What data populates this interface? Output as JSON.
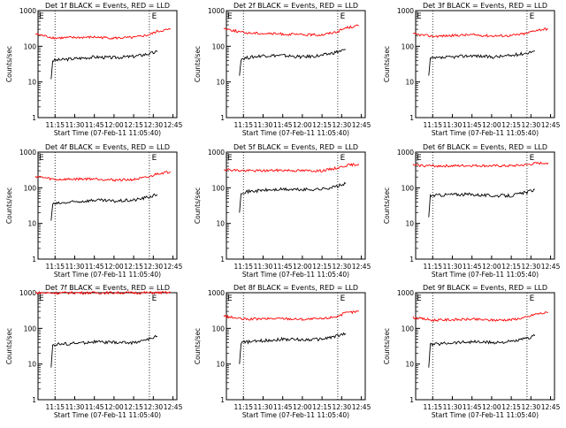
{
  "chart_data": [
    {
      "type": "line",
      "title": "Det 1f BLACK = Events, RED = LLD",
      "xlabel": "Start Time (07-Feb-11 11:05:40)",
      "ylabel": "Counts/sec",
      "yscale": "log",
      "ylim": [
        1,
        1000
      ],
      "x_tick_labels": [
        "11:15",
        "11:30",
        "11:45",
        "12:00",
        "12:15",
        "12:30",
        "12:45"
      ],
      "y_tick_labels": [
        "1",
        "10",
        "100",
        "1000"
      ],
      "markers": [
        "E",
        "E"
      ],
      "series": [
        {
          "color": "#000000",
          "values": [
            [
              11.2,
              12
            ],
            [
              11.22,
              40
            ],
            [
              11.5,
              45
            ],
            [
              11.75,
              50
            ],
            [
              12.0,
              48
            ],
            [
              12.25,
              52
            ],
            [
              12.45,
              62
            ],
            [
              12.55,
              70
            ]
          ]
        },
        {
          "color": "#ff0000",
          "values": [
            [
              11.0,
              220
            ],
            [
              11.25,
              170
            ],
            [
              11.5,
              175
            ],
            [
              11.75,
              180
            ],
            [
              12.0,
              170
            ],
            [
              12.25,
              175
            ],
            [
              12.45,
              210
            ],
            [
              12.55,
              260
            ],
            [
              12.72,
              300
            ]
          ]
        }
      ]
    },
    {
      "type": "line",
      "title": "Det 2f BLACK = Events, RED = LLD",
      "xlabel": "Start Time (07-Feb-11 11:05:40)",
      "ylabel": "Counts/sec",
      "yscale": "log",
      "ylim": [
        1,
        1000
      ],
      "x_tick_labels": [
        "11:15",
        "11:30",
        "11:45",
        "12:00",
        "12:15",
        "12:30",
        "12:45"
      ],
      "y_tick_labels": [
        "1",
        "10",
        "100",
        "1000"
      ],
      "markers": [
        "E",
        "E"
      ],
      "series": [
        {
          "color": "#000000",
          "values": [
            [
              11.2,
              15
            ],
            [
              11.22,
              45
            ],
            [
              11.5,
              55
            ],
            [
              11.75,
              55
            ],
            [
              12.0,
              50
            ],
            [
              12.25,
              55
            ],
            [
              12.45,
              70
            ],
            [
              12.55,
              80
            ]
          ]
        },
        {
          "color": "#ff0000",
          "values": [
            [
              11.0,
              320
            ],
            [
              11.25,
              240
            ],
            [
              11.5,
              230
            ],
            [
              11.75,
              220
            ],
            [
              12.0,
              210
            ],
            [
              12.25,
              210
            ],
            [
              12.45,
              260
            ],
            [
              12.55,
              330
            ],
            [
              12.72,
              380
            ]
          ]
        }
      ]
    },
    {
      "type": "line",
      "title": "Det 3f BLACK = Events, RED = LLD",
      "xlabel": "Start Time (07-Feb-11 11:05:40)",
      "ylabel": "Counts/sec",
      "yscale": "log",
      "ylim": [
        1,
        1000
      ],
      "x_tick_labels": [
        "11:15",
        "11:30",
        "11:45",
        "12:00",
        "12:15",
        "12:30",
        "12:45"
      ],
      "y_tick_labels": [
        "1",
        "10",
        "100",
        "1000"
      ],
      "markers": [
        "E",
        "E"
      ],
      "series": [
        {
          "color": "#000000",
          "values": [
            [
              11.2,
              15
            ],
            [
              11.22,
              45
            ],
            [
              11.5,
              50
            ],
            [
              11.75,
              55
            ],
            [
              12.0,
              50
            ],
            [
              12.25,
              55
            ],
            [
              12.45,
              65
            ],
            [
              12.55,
              75
            ]
          ]
        },
        {
          "color": "#ff0000",
          "values": [
            [
              11.0,
              220
            ],
            [
              11.25,
              190
            ],
            [
              11.5,
              200
            ],
            [
              11.75,
              210
            ],
            [
              12.0,
              195
            ],
            [
              12.25,
              200
            ],
            [
              12.45,
              230
            ],
            [
              12.55,
              280
            ],
            [
              12.72,
              310
            ]
          ]
        }
      ]
    },
    {
      "type": "line",
      "title": "Det 4f BLACK = Events, RED = LLD",
      "xlabel": "Start Time (07-Feb-11 11:05:40)",
      "ylabel": "Counts/sec",
      "yscale": "log",
      "ylim": [
        1,
        1000
      ],
      "x_tick_labels": [
        "11:15",
        "11:30",
        "11:45",
        "12:00",
        "12:15",
        "12:30",
        "12:45"
      ],
      "y_tick_labels": [
        "1",
        "10",
        "100",
        "1000"
      ],
      "markers": [
        "E",
        "E"
      ],
      "series": [
        {
          "color": "#000000",
          "values": [
            [
              11.2,
              12
            ],
            [
              11.22,
              35
            ],
            [
              11.5,
              40
            ],
            [
              11.75,
              45
            ],
            [
              12.0,
              42
            ],
            [
              12.25,
              45
            ],
            [
              12.45,
              55
            ],
            [
              12.55,
              65
            ]
          ]
        },
        {
          "color": "#ff0000",
          "values": [
            [
              11.0,
              210
            ],
            [
              11.25,
              170
            ],
            [
              11.5,
              175
            ],
            [
              11.75,
              180
            ],
            [
              12.0,
              165
            ],
            [
              12.25,
              170
            ],
            [
              12.45,
              200
            ],
            [
              12.55,
              250
            ],
            [
              12.72,
              280
            ]
          ]
        }
      ]
    },
    {
      "type": "line",
      "title": "Det 5f BLACK = Events, RED = LLD",
      "xlabel": "Start Time (07-Feb-11 11:05:40)",
      "ylabel": "Counts/sec",
      "yscale": "log",
      "ylim": [
        1,
        1000
      ],
      "x_tick_labels": [
        "11:15",
        "11:30",
        "11:45",
        "12:00",
        "12:15",
        "12:30",
        "12:45"
      ],
      "y_tick_labels": [
        "1",
        "10",
        "100",
        "1000"
      ],
      "markers": [
        "E",
        "E"
      ],
      "series": [
        {
          "color": "#000000",
          "values": [
            [
              11.2,
              20
            ],
            [
              11.22,
              75
            ],
            [
              11.5,
              85
            ],
            [
              11.75,
              90
            ],
            [
              12.0,
              88
            ],
            [
              12.25,
              92
            ],
            [
              12.45,
              110
            ],
            [
              12.55,
              130
            ]
          ]
        },
        {
          "color": "#ff0000",
          "values": [
            [
              11.0,
              330
            ],
            [
              11.25,
              300
            ],
            [
              11.5,
              300
            ],
            [
              11.75,
              310
            ],
            [
              12.0,
              300
            ],
            [
              12.25,
              300
            ],
            [
              12.45,
              360
            ],
            [
              12.55,
              420
            ],
            [
              12.72,
              460
            ]
          ]
        }
      ]
    },
    {
      "type": "line",
      "title": "Det 6f BLACK = Events, RED = LLD",
      "xlabel": "Start Time (07-Feb-11 11:05:40)",
      "ylabel": "Counts/sec",
      "yscale": "log",
      "ylim": [
        1,
        1000
      ],
      "x_tick_labels": [
        "11:15",
        "11:30",
        "11:45",
        "12:00",
        "12:15",
        "12:30",
        "12:45"
      ],
      "y_tick_labels": [
        "1",
        "10",
        "100",
        "1000"
      ],
      "markers": [
        "E",
        "E"
      ],
      "series": [
        {
          "color": "#000000",
          "values": [
            [
              11.2,
              15
            ],
            [
              11.22,
              60
            ],
            [
              11.5,
              65
            ],
            [
              11.75,
              65
            ],
            [
              12.0,
              60
            ],
            [
              12.25,
              60
            ],
            [
              12.45,
              75
            ],
            [
              12.55,
              90
            ]
          ]
        },
        {
          "color": "#ff0000",
          "values": [
            [
              11.0,
              430
            ],
            [
              11.25,
              410
            ],
            [
              11.5,
              410
            ],
            [
              11.75,
              420
            ],
            [
              12.0,
              410
            ],
            [
              12.25,
              410
            ],
            [
              12.45,
              440
            ],
            [
              12.55,
              480
            ],
            [
              12.72,
              500
            ]
          ]
        }
      ]
    },
    {
      "type": "line",
      "title": "Det 7f BLACK = Events, RED = LLD",
      "xlabel": "Start Time (07-Feb-11 11:05:40)",
      "ylabel": "Counts/sec",
      "yscale": "log",
      "ylim": [
        1,
        1000
      ],
      "x_tick_labels": [
        "11:15",
        "11:30",
        "11:45",
        "12:00",
        "12:15",
        "12:30",
        "12:45"
      ],
      "y_tick_labels": [
        "1",
        "10",
        "100",
        "1000"
      ],
      "markers": [
        "E",
        "E"
      ],
      "series": [
        {
          "color": "#000000",
          "values": [
            [
              11.2,
              8
            ],
            [
              11.22,
              35
            ],
            [
              11.5,
              38
            ],
            [
              11.75,
              42
            ],
            [
              12.0,
              40
            ],
            [
              12.25,
              40
            ],
            [
              12.45,
              50
            ],
            [
              12.55,
              60
            ]
          ]
        },
        {
          "color": "#ff0000",
          "values": [
            [
              11.0,
              1000
            ],
            [
              11.25,
              980
            ],
            [
              11.5,
              1000
            ],
            [
              11.75,
              990
            ],
            [
              12.0,
              1000
            ],
            [
              12.25,
              990
            ],
            [
              12.45,
              1000
            ],
            [
              12.55,
              1000
            ],
            [
              12.72,
              1000
            ]
          ]
        }
      ]
    },
    {
      "type": "line",
      "title": "Det 8f BLACK = Events, RED = LLD",
      "xlabel": "Start Time (07-Feb-11 11:05:40)",
      "ylabel": "Counts/sec",
      "yscale": "log",
      "ylim": [
        1,
        1000
      ],
      "x_tick_labels": [
        "11:15",
        "11:30",
        "11:45",
        "12:00",
        "12:15",
        "12:30",
        "12:45"
      ],
      "y_tick_labels": [
        "1",
        "10",
        "100",
        "1000"
      ],
      "markers": [
        "E",
        "E"
      ],
      "series": [
        {
          "color": "#000000",
          "values": [
            [
              11.2,
              10
            ],
            [
              11.22,
              40
            ],
            [
              11.5,
              45
            ],
            [
              11.75,
              50
            ],
            [
              12.0,
              48
            ],
            [
              12.25,
              50
            ],
            [
              12.45,
              62
            ],
            [
              12.55,
              72
            ]
          ]
        },
        {
          "color": "#ff0000",
          "values": [
            [
              11.0,
              220
            ],
            [
              11.25,
              180
            ],
            [
              11.5,
              185
            ],
            [
              11.75,
              190
            ],
            [
              12.0,
              180
            ],
            [
              12.25,
              185
            ],
            [
              12.45,
              220
            ],
            [
              12.55,
              270
            ],
            [
              12.72,
              300
            ]
          ]
        }
      ]
    },
    {
      "type": "line",
      "title": "Det 9f BLACK = Events, RED = LLD",
      "xlabel": "Start Time (07-Feb-11 11:05:40)",
      "ylabel": "Counts/sec",
      "yscale": "log",
      "ylim": [
        1,
        1000
      ],
      "x_tick_labels": [
        "11:15",
        "11:30",
        "11:45",
        "12:00",
        "12:15",
        "12:30",
        "12:45"
      ],
      "y_tick_labels": [
        "1",
        "10",
        "100",
        "1000"
      ],
      "markers": [
        "E",
        "E"
      ],
      "series": [
        {
          "color": "#000000",
          "values": [
            [
              11.2,
              8
            ],
            [
              11.22,
              35
            ],
            [
              11.5,
              40
            ],
            [
              11.75,
              42
            ],
            [
              12.0,
              40
            ],
            [
              12.25,
              42
            ],
            [
              12.45,
              52
            ],
            [
              12.55,
              62
            ]
          ]
        },
        {
          "color": "#ff0000",
          "values": [
            [
              11.0,
              200
            ],
            [
              11.25,
              170
            ],
            [
              11.5,
              175
            ],
            [
              11.75,
              180
            ],
            [
              12.0,
              170
            ],
            [
              12.25,
              175
            ],
            [
              12.45,
              205
            ],
            [
              12.55,
              250
            ],
            [
              12.72,
              280
            ]
          ]
        }
      ]
    }
  ]
}
